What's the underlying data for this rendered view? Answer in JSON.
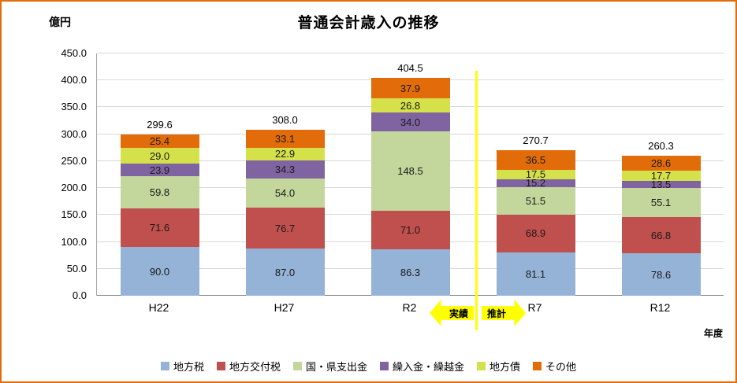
{
  "title": "普通会計歳入の推移",
  "y_unit": "億円",
  "x_axis_label": "年度",
  "annotations": {
    "actual_label": "実績",
    "estimate_label": "推計"
  },
  "colors": {
    "frame": "#E36C0A",
    "divider": "#FFFF00",
    "gridline": "#D9D9D9"
  },
  "chart_data": {
    "type": "bar",
    "stacked": true,
    "title": "普通会計歳入の推移",
    "xlabel": "年度",
    "ylabel": "億円",
    "categories": [
      "H22",
      "H27",
      "R2",
      "R7",
      "R12"
    ],
    "series": [
      {
        "name": "地方税",
        "color": "#95B3D7",
        "values": [
          90.0,
          87.0,
          86.3,
          81.1,
          78.6
        ]
      },
      {
        "name": "地方交付税",
        "color": "#C0504D",
        "values": [
          71.6,
          76.7,
          71.0,
          68.9,
          66.8
        ]
      },
      {
        "name": "国・県支出金",
        "color": "#C3D69B",
        "values": [
          59.8,
          54.0,
          148.5,
          51.5,
          55.1
        ]
      },
      {
        "name": "繰入金・繰越金",
        "color": "#8064A2",
        "values": [
          23.9,
          34.3,
          34.0,
          15.2,
          13.5
        ]
      },
      {
        "name": "地方債",
        "color": "#D4E14A",
        "values": [
          29.0,
          22.9,
          26.8,
          17.5,
          17.7
        ]
      },
      {
        "name": "その他",
        "color": "#E36C0A",
        "values": [
          25.4,
          33.1,
          37.9,
          36.5,
          28.6
        ]
      }
    ],
    "totals": [
      299.6,
      308.0,
      404.5,
      270.7,
      260.3
    ],
    "ylim": [
      0,
      450
    ],
    "ytick_step": 50,
    "grid": true,
    "legend_position": "bottom",
    "divider_after_category": "R2"
  }
}
